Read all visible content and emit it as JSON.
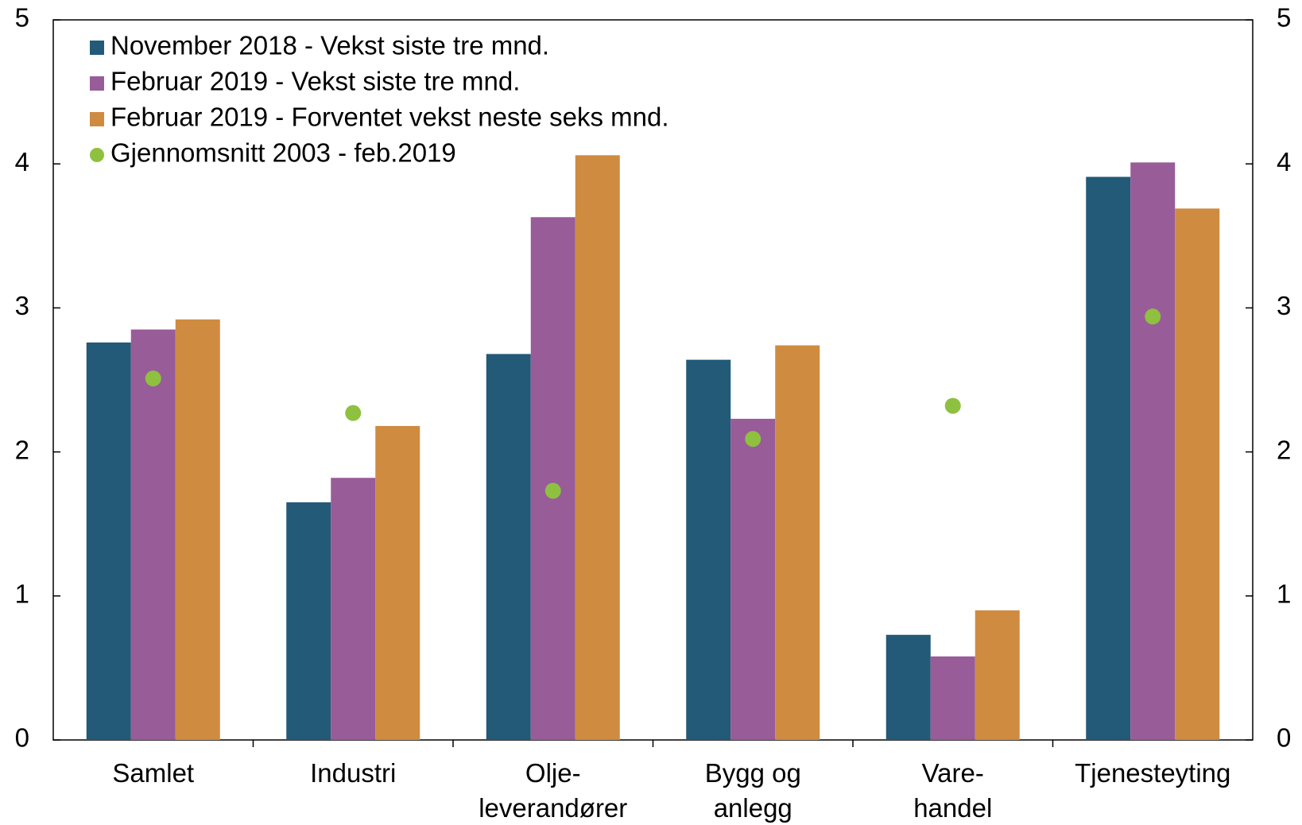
{
  "chart_data": {
    "type": "bar",
    "categories": [
      [
        "Samlet"
      ],
      [
        "Industri"
      ],
      [
        "Olje-",
        "leverandører"
      ],
      [
        "Bygg og",
        "anlegg"
      ],
      [
        "Vare-",
        "handel"
      ],
      [
        "Tjenesteyting"
      ]
    ],
    "series": [
      {
        "name": "November 2018 - Vekst siste tre mnd.",
        "color": "#225a78",
        "values": [
          2.76,
          1.65,
          2.68,
          2.64,
          0.73,
          3.91
        ]
      },
      {
        "name": "Februar 2019 - Vekst siste tre mnd.",
        "color": "#985c98",
        "values": [
          2.85,
          1.82,
          3.63,
          2.23,
          0.58,
          4.01
        ]
      },
      {
        "name": "Februar 2019 - Forventet vekst neste seks mnd.",
        "color": "#cf8b40",
        "values": [
          2.92,
          2.18,
          4.06,
          2.74,
          0.9,
          3.69
        ]
      },
      {
        "name": "Gjennomsnitt 2003 - feb.2019",
        "color": "#8dc13f",
        "type": "scatter",
        "values": [
          2.51,
          2.27,
          1.73,
          2.09,
          2.32,
          2.94
        ]
      }
    ],
    "ylim": [
      0,
      5
    ],
    "yticks": [
      0,
      1,
      2,
      3,
      4,
      5
    ],
    "y2lim": [
      0,
      5
    ],
    "y2ticks": [
      0,
      1,
      2,
      3,
      4,
      5
    ],
    "grid": false,
    "legend": "top-left"
  }
}
